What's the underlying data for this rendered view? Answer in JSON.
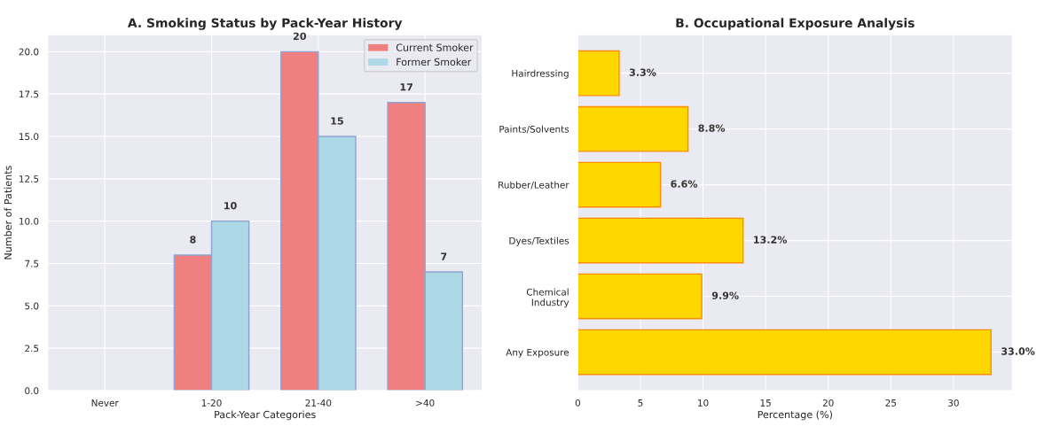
{
  "chart_data": [
    {
      "type": "bar",
      "title": "A. Smoking Status by Pack-Year History",
      "xlabel": "Pack-Year Categories",
      "ylabel": "Number of Patients",
      "categories": [
        "Never",
        "1-20",
        "21-40",
        ">40"
      ],
      "series": [
        {
          "name": "Current Smoker",
          "color": "#f08080",
          "values": [
            0,
            8,
            20,
            17
          ],
          "value_labels": [
            null,
            "8",
            "20",
            "17"
          ]
        },
        {
          "name": "Former Smoker",
          "color": "#add8e6",
          "values": [
            0,
            10,
            15,
            7
          ],
          "value_labels": [
            null,
            "10",
            "15",
            "7"
          ]
        }
      ],
      "ylim": [
        0,
        21
      ],
      "yticks": [
        {
          "value": 0,
          "label": "0.0"
        },
        {
          "value": 2.5,
          "label": "2.5"
        },
        {
          "value": 5,
          "label": "5.0"
        },
        {
          "value": 7.5,
          "label": "7.5"
        },
        {
          "value": 10,
          "label": "10.0"
        },
        {
          "value": 12.5,
          "label": "12.5"
        },
        {
          "value": 15,
          "label": "15.0"
        },
        {
          "value": 17.5,
          "label": "17.5"
        },
        {
          "value": 20,
          "label": "20.0"
        }
      ],
      "grid": true,
      "legend": "top right"
    },
    {
      "type": "bar",
      "orientation": "horizontal",
      "title": "B. Occupational Exposure Analysis",
      "xlabel": "Percentage (%)",
      "categories": [
        "Hairdressing",
        "Paints/Solvents",
        "Rubber/Leather",
        "Dyes/Textiles",
        "Chemical\nIndustry",
        "Any Exposure"
      ],
      "series": [
        {
          "color": "#ffd700",
          "values": [
            3.3,
            8.8,
            6.6,
            13.2,
            9.9,
            33.0
          ],
          "value_labels": [
            "3.3%",
            "8.8%",
            "6.6%",
            "13.2%",
            "9.9%",
            "33.0%"
          ]
        }
      ],
      "xlim": [
        0,
        34.7
      ],
      "xticks": [
        0,
        5,
        10,
        15,
        20,
        25,
        30
      ],
      "grid": true,
      "legend": false
    }
  ]
}
